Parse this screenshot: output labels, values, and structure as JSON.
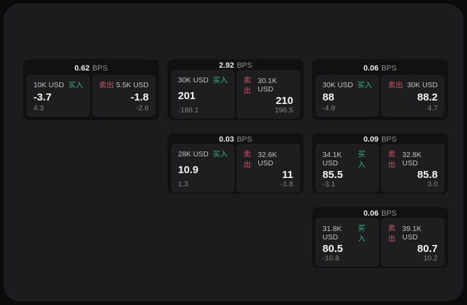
{
  "labels": {
    "buy": "买入",
    "sell": "卖出",
    "bps_unit": "BPS"
  },
  "colors": {
    "buy_green": "#36b37e",
    "sell_red": "#d05468",
    "panel_bg": "#1c1c1e",
    "card_bg": "#111112",
    "tile_bg": "#1e1e20"
  },
  "cards": [
    {
      "col": 0,
      "row": 0,
      "bps": "0.62",
      "buy": {
        "amount": "10K USD",
        "value": "-3.7",
        "delta": "4.3"
      },
      "sell": {
        "amount": "5.5K USD",
        "value": "-1.8",
        "delta": "-2.6"
      }
    },
    {
      "col": 1,
      "row": 0,
      "bps": "2.92",
      "buy": {
        "amount": "30K USD",
        "value": "201",
        "delta": "-188.1"
      },
      "sell": {
        "amount": "30.1K USD",
        "value": "210",
        "delta": "196.5"
      }
    },
    {
      "col": 2,
      "row": 0,
      "bps": "0.06",
      "buy": {
        "amount": "30K USD",
        "value": "88",
        "delta": "-4.9"
      },
      "sell": {
        "amount": "30K USD",
        "value": "88.2",
        "delta": "4.7"
      }
    },
    {
      "col": 1,
      "row": 1,
      "bps": "0.03",
      "buy": {
        "amount": "28K USD",
        "value": "10.9",
        "delta": "1.3"
      },
      "sell": {
        "amount": "32.6K USD",
        "value": "11",
        "delta": "-1.8"
      }
    },
    {
      "col": 2,
      "row": 1,
      "bps": "0.09",
      "buy": {
        "amount": "34.1K USD",
        "value": "85.5",
        "delta": "-3.1"
      },
      "sell": {
        "amount": "32.8K USD",
        "value": "85.8",
        "delta": "3.0"
      }
    },
    {
      "col": 2,
      "row": 2,
      "bps": "0.06",
      "buy": {
        "amount": "31.8K USD",
        "value": "80.5",
        "delta": "-10.8"
      },
      "sell": {
        "amount": "39.1K USD",
        "value": "80.7",
        "delta": "10.2"
      }
    }
  ]
}
